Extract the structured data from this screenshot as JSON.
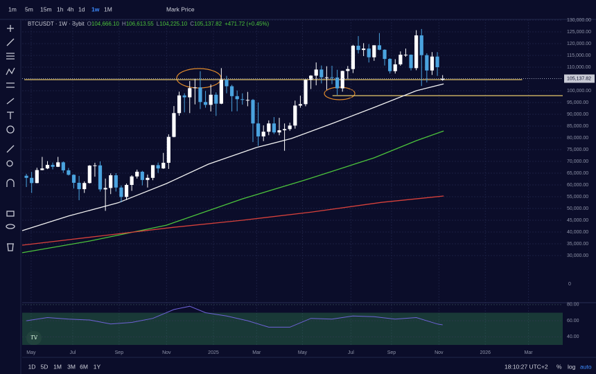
{
  "toolbar": {
    "intervals": [
      "1m",
      "5m",
      "15m",
      "1h",
      "4h",
      "1d",
      "1w",
      "1M"
    ],
    "active_interval": 6,
    "price_source": "Mark Price"
  },
  "header": {
    "symbol": "BTCUSDT · 1W · Bybit",
    "ohlc": [
      {
        "key": "O",
        "label": "104,666.10"
      },
      {
        "key": "H",
        "label": "106,613.55"
      },
      {
        "key": "L",
        "label": "104,225.10"
      },
      {
        "key": "C",
        "label": "105,137.82"
      }
    ],
    "change": "+471.72 (+0.45%)"
  },
  "chart_data": {
    "type": "candlestick",
    "x": [
      0,
      1,
      2,
      3,
      4,
      5,
      6,
      7,
      8,
      9,
      10,
      11,
      12,
      13,
      14,
      15,
      16,
      17,
      18,
      19,
      20,
      21,
      22,
      23,
      24,
      25,
      26,
      27,
      28,
      29,
      30,
      31,
      32,
      33,
      34,
      35,
      36,
      37,
      38,
      39,
      40,
      41,
      42,
      43,
      44,
      45,
      46,
      47,
      48,
      49,
      50,
      51,
      52,
      53,
      54,
      55,
      56,
      57,
      58,
      59,
      60,
      61,
      62,
      63,
      64,
      65,
      66,
      67,
      68,
      69,
      70,
      71,
      72,
      73,
      74,
      75,
      76,
      77,
      78,
      79
    ],
    "candles": [
      [
        63900,
        64700,
        59100,
        63000
      ],
      [
        63000,
        65500,
        56600,
        60800
      ],
      [
        60800,
        67300,
        60700,
        66300
      ],
      [
        66300,
        71900,
        66200,
        67000
      ],
      [
        67000,
        70100,
        66700,
        68500
      ],
      [
        68500,
        69500,
        66600,
        67700
      ],
      [
        67700,
        71900,
        67600,
        69600
      ],
      [
        69600,
        70000,
        65100,
        66200
      ],
      [
        66200,
        67200,
        64000,
        64300
      ],
      [
        64300,
        64500,
        58500,
        60900
      ],
      [
        60900,
        63800,
        53500,
        58200
      ],
      [
        58200,
        61500,
        56600,
        60800
      ],
      [
        60800,
        68400,
        60600,
        68200
      ],
      [
        68200,
        69400,
        63500,
        68300
      ],
      [
        68300,
        70000,
        57200,
        58100
      ],
      [
        58100,
        62700,
        49000,
        58700
      ],
      [
        58700,
        64900,
        56100,
        64100
      ],
      [
        64100,
        65000,
        57200,
        58900
      ],
      [
        58900,
        59800,
        52600,
        54900
      ],
      [
        54900,
        60600,
        53600,
        60000
      ],
      [
        60000,
        64100,
        57500,
        63600
      ],
      [
        63600,
        66500,
        62700,
        65600
      ],
      [
        65600,
        66000,
        59800,
        62100
      ],
      [
        62100,
        64400,
        58900,
        63000
      ],
      [
        63000,
        68400,
        62000,
        68400
      ],
      [
        68400,
        69500,
        65100,
        67000
      ],
      [
        67000,
        73600,
        66800,
        69400
      ],
      [
        69400,
        81500,
        66800,
        80400
      ],
      [
        80400,
        93500,
        80200,
        90500
      ],
      [
        90500,
        99600,
        89400,
        98000
      ],
      [
        98000,
        98900,
        90800,
        97200
      ],
      [
        97200,
        104100,
        90500,
        101100
      ],
      [
        101100,
        105200,
        94200,
        101400
      ],
      [
        101400,
        108300,
        92200,
        95200
      ],
      [
        95200,
        99900,
        92800,
        94000
      ],
      [
        94000,
        102700,
        91200,
        98300
      ],
      [
        98300,
        99300,
        89300,
        94500
      ],
      [
        94500,
        109600,
        94300,
        104700
      ],
      [
        104700,
        106300,
        98900,
        101900
      ],
      [
        101900,
        102500,
        91200,
        97700
      ],
      [
        97700,
        100100,
        91300,
        96400
      ],
      [
        96400,
        98900,
        94100,
        96100
      ],
      [
        96100,
        99500,
        93400,
        96100
      ],
      [
        96100,
        96500,
        78200,
        86100
      ],
      [
        86100,
        95000,
        76600,
        80600
      ],
      [
        80600,
        85300,
        78600,
        82600
      ],
      [
        82600,
        87400,
        81100,
        86100
      ],
      [
        86100,
        88800,
        81600,
        82300
      ],
      [
        82300,
        88500,
        81100,
        83200
      ],
      [
        83200,
        86100,
        74500,
        83700
      ],
      [
        83700,
        86400,
        83000,
        85200
      ],
      [
        85200,
        95800,
        83900,
        93700
      ],
      [
        93700,
        97900,
        92800,
        94300
      ],
      [
        94300,
        104900,
        93400,
        104600
      ],
      [
        104600,
        106600,
        100700,
        106400
      ],
      [
        106400,
        112000,
        102300,
        109000
      ],
      [
        109000,
        110700,
        103100,
        105700
      ],
      [
        105700,
        110400,
        100400,
        105700
      ],
      [
        105700,
        110600,
        102800,
        105600
      ],
      [
        105600,
        108900,
        98200,
        101000
      ],
      [
        101000,
        108500,
        99600,
        108400
      ],
      [
        108400,
        110500,
        105100,
        109200
      ],
      [
        109200,
        119500,
        107500,
        119100
      ],
      [
        119100,
        123200,
        115800,
        117300
      ],
      [
        117300,
        120200,
        114700,
        117900
      ],
      [
        117900,
        119800,
        112000,
        114200
      ],
      [
        114200,
        119300,
        112700,
        119300
      ],
      [
        119300,
        124500,
        117200,
        117400
      ],
      [
        117400,
        117600,
        110700,
        113500
      ],
      [
        113500,
        113800,
        107300,
        108300
      ],
      [
        108300,
        113400,
        107300,
        111200
      ],
      [
        111200,
        116700,
        110600,
        115300
      ],
      [
        115300,
        117900,
        114400,
        115300
      ],
      [
        115300,
        115400,
        108600,
        109600
      ],
      [
        109600,
        125700,
        108700,
        123500
      ],
      [
        123500,
        126200,
        102000,
        115100
      ],
      [
        115100,
        115900,
        103500,
        108600
      ],
      [
        108600,
        116400,
        106700,
        114500
      ],
      [
        114500,
        116400,
        106300,
        110000
      ],
      [
        104666.1,
        106613.55,
        104225.1,
        105137.82
      ]
    ],
    "up_color": "#ffffff",
    "down_color": "#4aa3df",
    "xlim": [
      -0.8,
      101.8
    ],
    "xticks": [
      {
        "value": 0.9,
        "label": "May"
      },
      {
        "value": 8.8,
        "label": "Jul"
      },
      {
        "value": 17.6,
        "label": "Sep"
      },
      {
        "value": 26.6,
        "label": "Nov"
      },
      {
        "value": 35.5,
        "label": "2025"
      },
      {
        "value": 43.7,
        "label": "Mar"
      },
      {
        "value": 52.4,
        "label": "May"
      },
      {
        "value": 61.6,
        "label": "Jul"
      },
      {
        "value": 69.3,
        "label": "Sep"
      },
      {
        "value": 78.3,
        "label": "Nov"
      },
      {
        "value": 87.1,
        "label": "2026"
      },
      {
        "value": 95.3,
        "label": "Mar"
      }
    ],
    "ylim": [
      12060,
      130290
    ],
    "yticks": [
      {
        "value": 130000,
        "label": "130,000.00"
      },
      {
        "value": 125000,
        "label": "125,000.00"
      },
      {
        "value": 120000,
        "label": "120,000.00"
      },
      {
        "value": 115000,
        "label": "115,000.00"
      },
      {
        "value": 110000,
        "label": "110,000.00"
      },
      {
        "value": 100000,
        "label": "100,000.00"
      },
      {
        "value": 95000,
        "label": "95,000.00"
      },
      {
        "value": 90000,
        "label": "90,000.00"
      },
      {
        "value": 85000,
        "label": "85,000.00"
      },
      {
        "value": 80000,
        "label": "80,000.00"
      },
      {
        "value": 75000,
        "label": "75,000.00"
      },
      {
        "value": 70000,
        "label": "70,000.00"
      },
      {
        "value": 65000,
        "label": "65,000.00"
      },
      {
        "value": 60000,
        "label": "60,000.00"
      },
      {
        "value": 55000,
        "label": "55,000.00"
      },
      {
        "value": 50000,
        "label": "50,000.00"
      },
      {
        "value": 45000,
        "label": "45,000.00"
      },
      {
        "value": 40000,
        "label": "40,000.00"
      },
      {
        "value": 35000,
        "label": "35,000.00"
      },
      {
        "value": 30000,
        "label": "30,000.00"
      }
    ],
    "aux_axis_label": "0",
    "current_price": {
      "value": 105137.82,
      "label": "105,137.82"
    },
    "lines": [
      {
        "color": "#f2f2f2",
        "x": [
          -0.8,
          8,
          17.4,
          26.6,
          34.5,
          43.7,
          50.3,
          58.2,
          66,
          74,
          79.2
        ],
        "values": [
          40600,
          46800,
          52400,
          60600,
          68800,
          75900,
          79700,
          86200,
          92900,
          100000,
          102900
        ]
      },
      {
        "color": "#4cc43c",
        "x": [
          -0.8,
          12.1,
          26.6,
          41,
          52.9,
          66,
          74,
          79.2
        ],
        "values": [
          31200,
          36200,
          42900,
          54100,
          62100,
          71500,
          78800,
          82900
        ]
      },
      {
        "color": "#d8413b",
        "x": [
          -0.8,
          14.7,
          27.9,
          41,
          54.2,
          67.4,
          79.2
        ],
        "values": [
          34400,
          38500,
          42000,
          45000,
          48500,
          52600,
          55300
        ]
      }
    ],
    "levels": [
      {
        "value": 104700,
        "color": "#e8c96a",
        "x": [
          -0.4,
          94.1
        ]
      },
      {
        "value": 97900,
        "color": "#e8c96a",
        "x": [
          58.1,
          101.8
        ]
      }
    ],
    "grid": true
  },
  "rsi": {
    "type": "line",
    "color": "#6f63d8",
    "ylim": [
      30,
      82.5
    ],
    "yticks": [
      {
        "value": 80,
        "label": "80.00"
      },
      {
        "value": 60,
        "label": "60.00"
      },
      {
        "value": 40,
        "label": "40.00"
      }
    ],
    "band": [
      30,
      70
    ],
    "x": [
      0,
      4,
      8,
      12,
      16,
      20,
      24,
      28,
      31,
      34,
      38,
      42,
      46,
      50,
      54,
      58,
      62,
      66,
      70,
      74,
      78,
      79
    ],
    "values": [
      60,
      64,
      62,
      61,
      56,
      58,
      63,
      74,
      78,
      70,
      66,
      60,
      52,
      52,
      63,
      62,
      66,
      65,
      62,
      64,
      56,
      55
    ]
  },
  "bottom": {
    "ranges": [
      "1D",
      "5D",
      "1M",
      "3M",
      "6M",
      "1Y"
    ],
    "clock": "18:10:27 UTC+2",
    "percent": "%",
    "log": "log",
    "auto": "auto"
  }
}
